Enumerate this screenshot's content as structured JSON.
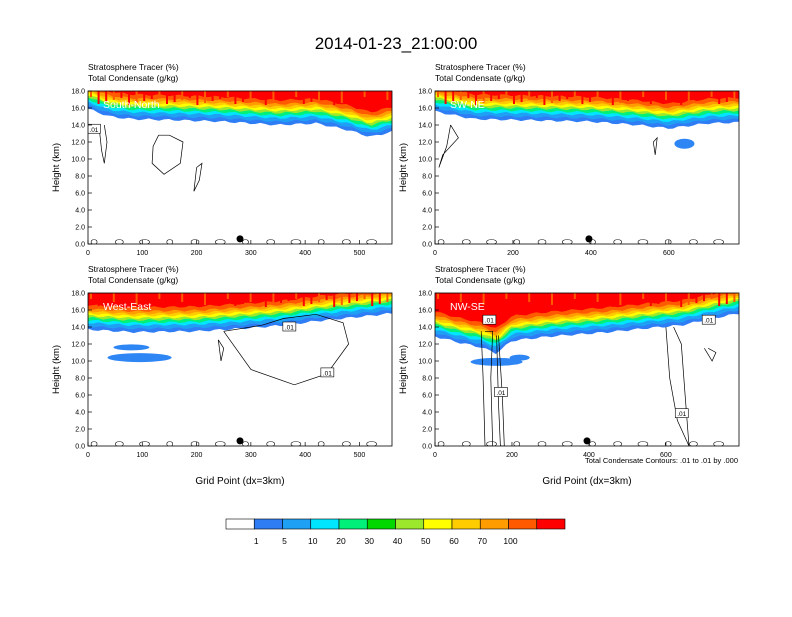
{
  "title": "2014-01-23_21:00:00",
  "panel_subtitle_left_1": "Stratosphere Tracer   (%)",
  "panel_subtitle_left_2": "Total Condensate   (g/kg)",
  "ylabel": "Height (km)",
  "xlabel": "Grid Point (dx=3km)",
  "contour_note": "Total Condensate Contours: .01 to .01 by .000",
  "contour_label": ".01",
  "colors": {
    "levels": [
      "#ffffff",
      "#2f7df5",
      "#1ea1f5",
      "#00e6ff",
      "#00f07a",
      "#00d800",
      "#9be82d",
      "#ffff00",
      "#ffcc00",
      "#ff9d00",
      "#ff5a00",
      "#ff0000"
    ],
    "blob": "#2e86f5"
  },
  "colorbar": {
    "labels": [
      "1",
      "5",
      "10",
      "20",
      "30",
      "40",
      "50",
      "60",
      "70",
      "100"
    ]
  },
  "chart_data": [
    {
      "type": "heatmap",
      "name": "South-North",
      "ylim": [
        0,
        18
      ],
      "yticks": [
        "0.0",
        "2.0",
        "4.0",
        "6.0",
        "8.0",
        "10.0",
        "12.0",
        "14.0",
        "16.0",
        "18.0"
      ],
      "xlim": [
        0,
        560
      ],
      "xticks": [
        {
          "v": 0,
          "t": "0"
        },
        {
          "v": 100,
          "t": "100"
        },
        {
          "v": 200,
          "t": "200"
        },
        {
          "v": 300,
          "t": "300"
        },
        {
          "v": 400,
          "t": "400"
        },
        {
          "v": 500,
          "t": "500"
        }
      ],
      "marker_x": 280,
      "tropopause": [
        [
          0,
          16.5
        ],
        [
          40,
          15.6
        ],
        [
          80,
          15.3
        ],
        [
          150,
          15.2
        ],
        [
          250,
          15.0
        ],
        [
          350,
          14.6
        ],
        [
          420,
          14.8
        ],
        [
          480,
          14.0
        ],
        [
          520,
          13.2
        ],
        [
          560,
          13.8
        ]
      ]
    },
    {
      "type": "heatmap",
      "name": "SW-NE",
      "ylim": [
        0,
        18
      ],
      "yticks": [
        "0.0",
        "2.0",
        "4.0",
        "6.0",
        "8.0",
        "10.0",
        "12.0",
        "14.0",
        "16.0",
        "18.0"
      ],
      "xlim": [
        0,
        780
      ],
      "xticks": [
        {
          "v": 0,
          "t": "0"
        },
        {
          "v": 200,
          "t": "200"
        },
        {
          "v": 400,
          "t": "400"
        },
        {
          "v": 600,
          "t": "600"
        }
      ],
      "marker_x": 395,
      "tropopause": [
        [
          0,
          16.2
        ],
        [
          100,
          15.3
        ],
        [
          200,
          15.2
        ],
        [
          400,
          15.0
        ],
        [
          520,
          14.6
        ],
        [
          600,
          14.2
        ],
        [
          700,
          14.8
        ],
        [
          780,
          14.9
        ]
      ]
    },
    {
      "type": "heatmap",
      "name": "West-East",
      "ylim": [
        0,
        18
      ],
      "yticks": [
        "0.0",
        "2.0",
        "4.0",
        "6.0",
        "8.0",
        "10.0",
        "12.0",
        "14.0",
        "16.0",
        "18.0"
      ],
      "xlim": [
        0,
        560
      ],
      "xticks": [
        {
          "v": 0,
          "t": "0"
        },
        {
          "v": 100,
          "t": "100"
        },
        {
          "v": 200,
          "t": "200"
        },
        {
          "v": 300,
          "t": "300"
        },
        {
          "v": 400,
          "t": "400"
        },
        {
          "v": 500,
          "t": "500"
        }
      ],
      "marker_x": 280,
      "tropopause": [
        [
          0,
          14.3
        ],
        [
          80,
          14.0
        ],
        [
          200,
          14.1
        ],
        [
          300,
          14.5
        ],
        [
          360,
          14.8
        ],
        [
          420,
          15.3
        ],
        [
          500,
          15.8
        ],
        [
          560,
          16.2
        ]
      ]
    },
    {
      "type": "heatmap",
      "name": "NW-SE",
      "ylim": [
        0,
        18
      ],
      "yticks": [
        "0.0",
        "2.0",
        "4.0",
        "6.0",
        "8.0",
        "10.0",
        "12.0",
        "14.0",
        "16.0",
        "18.0"
      ],
      "xlim": [
        0,
        790
      ],
      "xticks": [
        {
          "v": 0,
          "t": "0"
        },
        {
          "v": 200,
          "t": "200"
        },
        {
          "v": 400,
          "t": "400"
        },
        {
          "v": 600,
          "t": "600"
        }
      ],
      "marker_x": 395,
      "tropopause": [
        [
          0,
          13.5
        ],
        [
          60,
          12.8
        ],
        [
          120,
          12.2
        ],
        [
          160,
          11.5
        ],
        [
          200,
          13.0
        ],
        [
          300,
          13.5
        ],
        [
          450,
          14.0
        ],
        [
          560,
          14.5
        ],
        [
          640,
          14.8
        ],
        [
          720,
          15.6
        ],
        [
          790,
          16.2
        ]
      ]
    }
  ]
}
